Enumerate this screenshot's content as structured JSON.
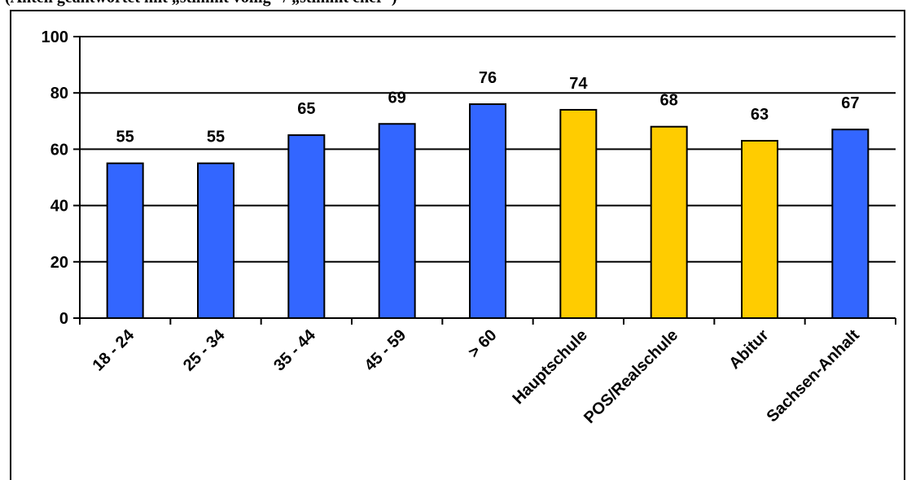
{
  "header": {
    "note": "(Anteil geantwortet mit „stimmt völlig“ / „stimmt eher“)"
  },
  "chart_data": {
    "type": "bar",
    "title": "",
    "xlabel": "",
    "ylabel": "",
    "ylim": [
      0,
      100
    ],
    "yticks": [
      0,
      20,
      40,
      60,
      80,
      100
    ],
    "grid": true,
    "categories": [
      "18 - 24",
      "25 - 34",
      "35 - 44",
      "45 - 59",
      "> 60",
      "Hauptschule",
      "POS/Realschule",
      "Abitur",
      "Sachsen-Anhalt"
    ],
    "values": [
      55,
      55,
      65,
      69,
      76,
      74,
      68,
      63,
      67
    ],
    "colors": [
      "#3366FF",
      "#3366FF",
      "#3366FF",
      "#3366FF",
      "#3366FF",
      "#FFCC00",
      "#FFCC00",
      "#FFCC00",
      "#3366FF"
    ],
    "data_labels": [
      "55",
      "55",
      "65",
      "69",
      "76",
      "74",
      "68",
      "63",
      "67"
    ]
  }
}
